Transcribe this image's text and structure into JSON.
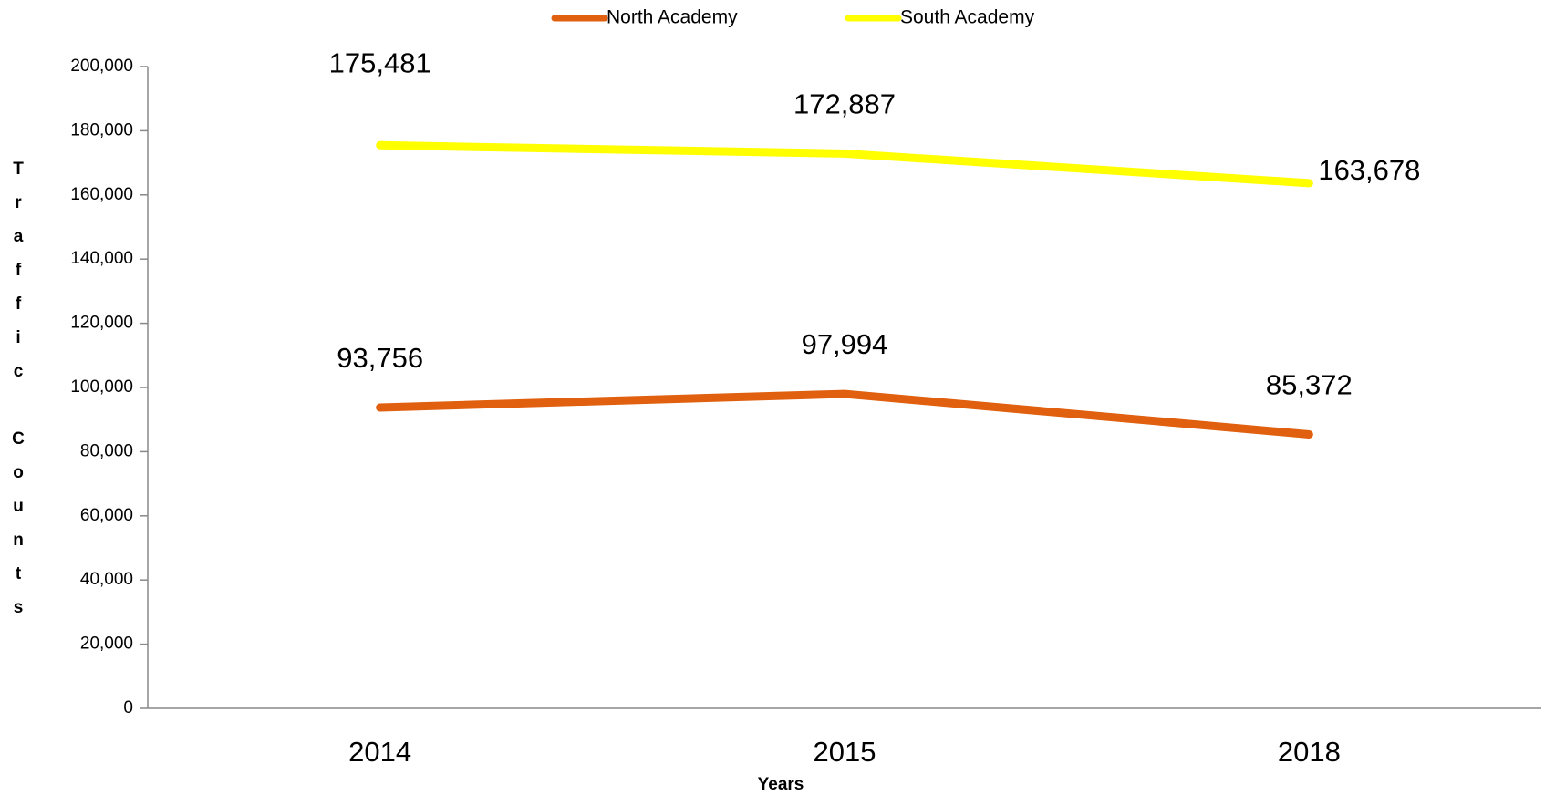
{
  "chart_data": {
    "type": "line",
    "x_label": "Years",
    "y_label": "Traffic Counts",
    "categories": [
      "2014",
      "2015",
      "2018"
    ],
    "series": [
      {
        "name": "North Academy",
        "color": "#e06010",
        "values": [
          93756,
          97994,
          85372
        ],
        "value_labels": [
          "93,756",
          "97,994",
          "85,372"
        ]
      },
      {
        "name": "South Academy",
        "color": "#ffff00",
        "values": [
          175481,
          172887,
          163678
        ],
        "value_labels": [
          "175,481",
          "172,887",
          "163,678"
        ]
      }
    ],
    "ylim": [
      0,
      200000
    ],
    "yticks": [
      0,
      {
        "value": 20000,
        "label": "20,000"
      },
      {
        "value": 40000,
        "label": "40,000"
      },
      {
        "value": 60000,
        "label": "60,000"
      },
      {
        "value": 80000,
        "label": "80,000"
      },
      {
        "value": 100000,
        "label": "100,000"
      },
      {
        "value": 120000,
        "label": "120,000"
      },
      {
        "value": 140000,
        "label": "140,000"
      },
      {
        "value": 160000,
        "label": "160,000"
      },
      {
        "value": 180000,
        "label": "180,000"
      },
      {
        "value": 200000,
        "label": "200,000"
      }
    ],
    "legend": "top",
    "grid": false
  }
}
